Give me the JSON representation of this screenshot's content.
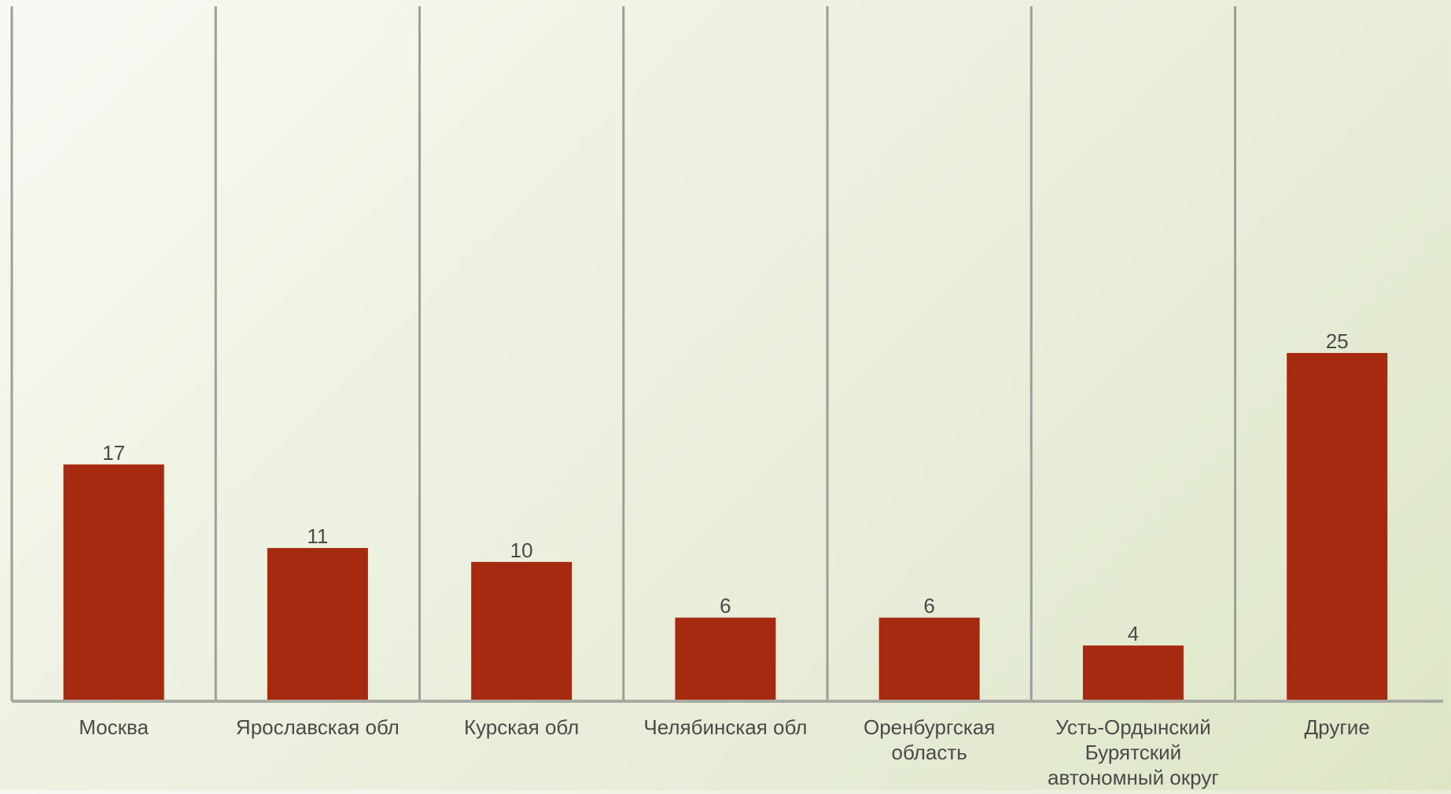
{
  "chart_data": {
    "type": "bar",
    "categories": [
      [
        "Москва"
      ],
      [
        "Ярославская обл"
      ],
      [
        "Курская обл"
      ],
      [
        "Челябинская обл"
      ],
      [
        "Оренбургская",
        "область"
      ],
      [
        "Усть-Ордынский",
        "Бурятский",
        "автономный округ"
      ],
      [
        "Другие"
      ]
    ],
    "values": [
      17,
      11,
      10,
      6,
      6,
      4,
      25
    ],
    "ylim": [
      0,
      30
    ],
    "grid": "vertical category dividers",
    "colors": {
      "bar": "#a52a10",
      "grid": "#9c9e98",
      "axis": "#a8aba4",
      "label": "#4a4a4a"
    }
  }
}
